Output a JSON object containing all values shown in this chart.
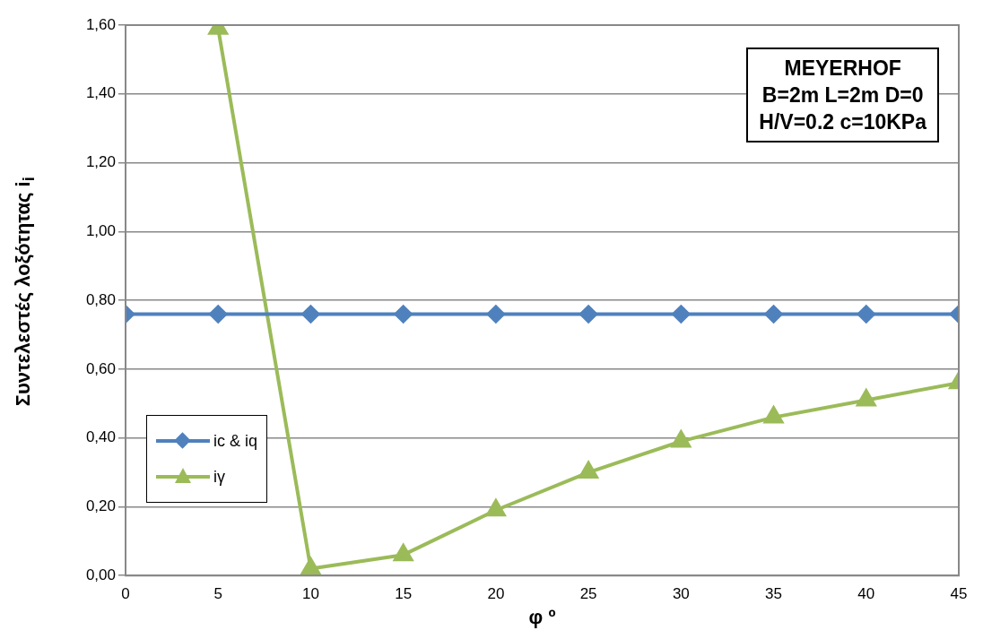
{
  "chart_data": {
    "type": "line",
    "xlabel": "φ º",
    "ylabel": "Συντελεστές λοξότητας i$_{i}$",
    "x": [
      0,
      5,
      10,
      15,
      20,
      25,
      30,
      35,
      40,
      45
    ],
    "series": [
      {
        "name": "ic & iq",
        "color": "#4f81bd",
        "marker": "diamond",
        "values": [
          0.76,
          0.76,
          0.76,
          0.76,
          0.76,
          0.76,
          0.76,
          0.76,
          0.76,
          0.76
        ]
      },
      {
        "name": "iγ",
        "color": "#9bbb59",
        "marker": "triangle",
        "values": [
          null,
          1.59,
          0.02,
          0.06,
          0.19,
          0.3,
          0.39,
          0.46,
          0.51,
          0.56
        ]
      }
    ],
    "xlim": [
      0,
      45
    ],
    "xticks": [
      0,
      5,
      10,
      15,
      20,
      25,
      30,
      35,
      40,
      45
    ],
    "ylim": [
      0,
      1.6
    ],
    "yticks": [
      {
        "value": 0,
        "label": "0,00"
      },
      {
        "value": 0.2,
        "label": "0,20"
      },
      {
        "value": 0.4,
        "label": "0,40"
      },
      {
        "value": 0.6,
        "label": "0,60"
      },
      {
        "value": 0.8,
        "label": "0,80"
      },
      {
        "value": 1,
        "label": "1,00"
      },
      {
        "value": 1.2,
        "label": "1,20"
      },
      {
        "value": 1.4,
        "label": "1,40"
      },
      {
        "value": 1.6,
        "label": "1,60"
      }
    ],
    "grid": "y",
    "legend": "left",
    "line_style": "solid",
    "annotations": [
      "MEYERHOF",
      "B=2m L=2m D=0",
      "H/V=0.2  c=10KPa"
    ]
  }
}
